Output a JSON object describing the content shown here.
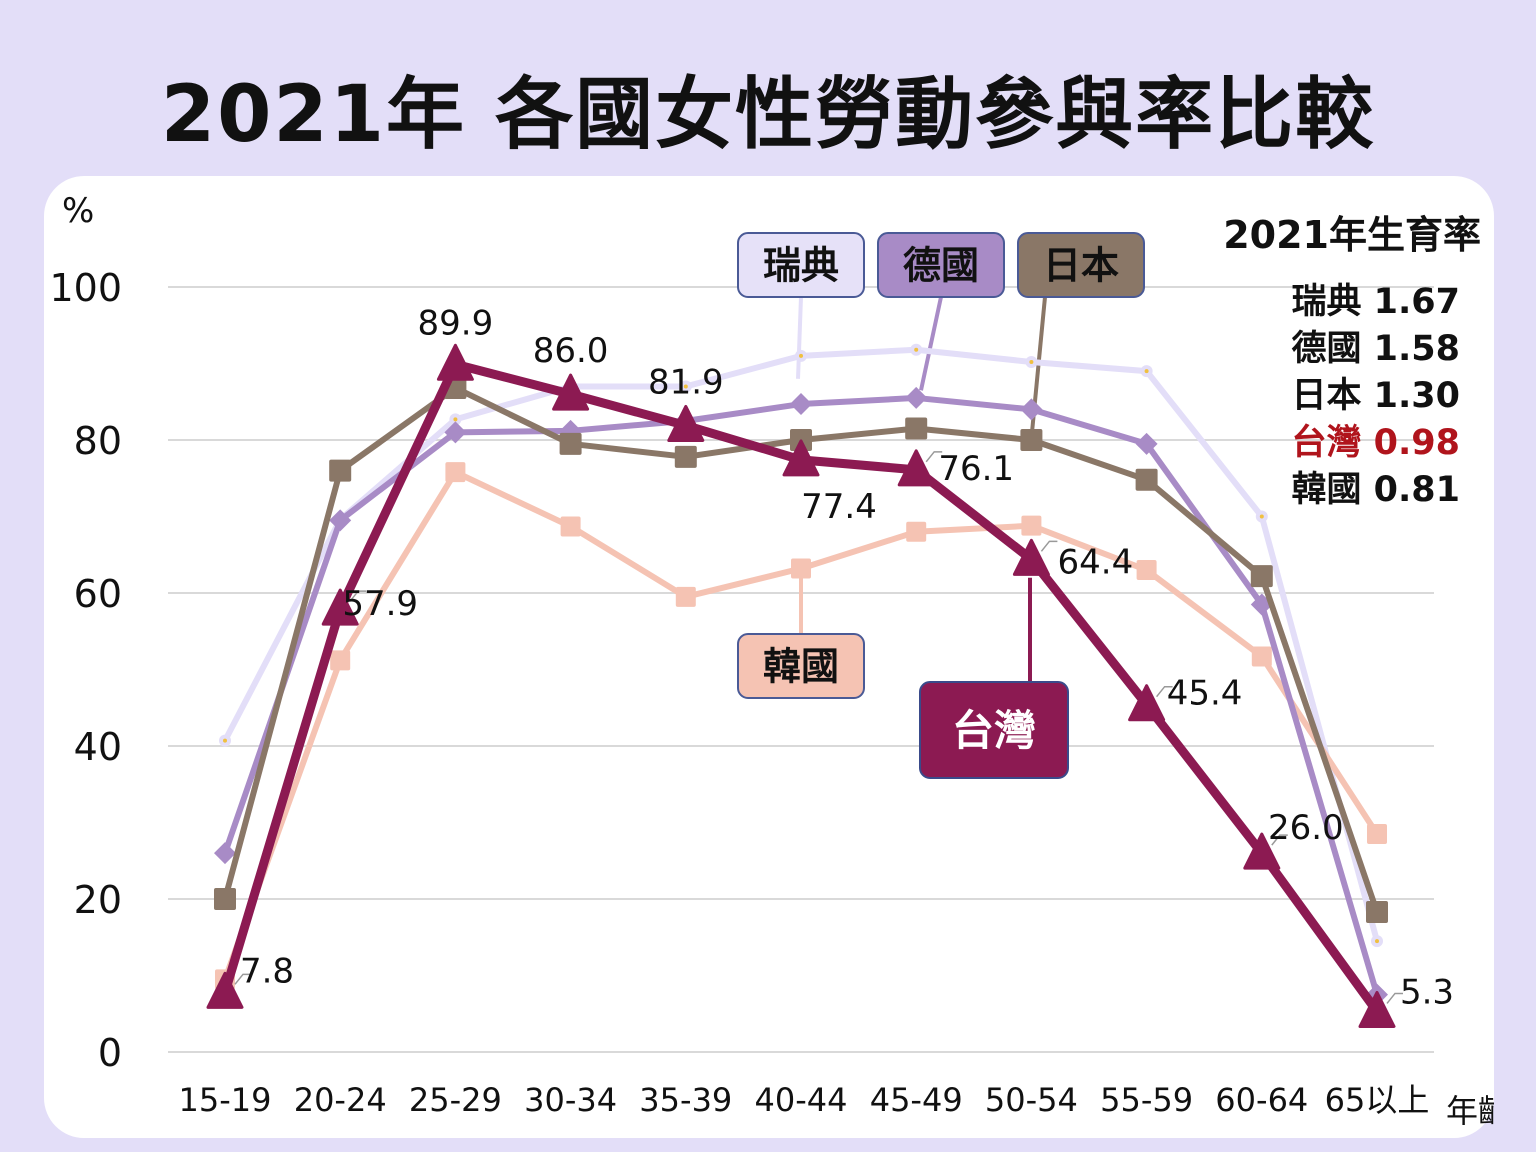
{
  "title": "2021年 各國女性勞動參與率比較",
  "chart_data": {
    "type": "line",
    "title": "2021年 各國女性勞動參與率比較",
    "ylabel": "%",
    "xlabel": "年齡",
    "ylim": [
      0,
      100
    ],
    "yticks": [
      0,
      20,
      40,
      60,
      80,
      100
    ],
    "categories": [
      "15-19",
      "20-24",
      "25-29",
      "30-34",
      "35-39",
      "40-44",
      "45-49",
      "50-54",
      "55-59",
      "60-64",
      "65以上"
    ],
    "series": [
      {
        "name": "瑞典",
        "color": "#e3def8",
        "marker": "circle",
        "values": [
          40.7,
          69.6,
          82.7,
          87.0,
          87.0,
          91.0,
          91.8,
          90.2,
          89.0,
          70.0,
          14.5
        ]
      },
      {
        "name": "韓國",
        "color": "#f5c3b3",
        "marker": "square",
        "values": [
          9.5,
          51.2,
          75.8,
          68.7,
          59.5,
          63.2,
          68.0,
          68.8,
          63.0,
          51.7,
          28.5
        ]
      },
      {
        "name": "德國",
        "color": "#a88bc6",
        "marker": "diamond",
        "values": [
          26.0,
          69.5,
          81.0,
          81.2,
          82.5,
          84.7,
          85.5,
          84.0,
          79.5,
          58.5,
          7.5
        ]
      },
      {
        "name": "日本",
        "color": "#8a7767",
        "marker": "square",
        "values": [
          20.0,
          76.0,
          86.8,
          79.5,
          77.8,
          80.0,
          81.5,
          80.0,
          74.8,
          62.2,
          18.3
        ]
      },
      {
        "name": "台灣",
        "color": "#8c1a52",
        "marker": "triangle",
        "values": [
          7.8,
          57.9,
          89.9,
          86.0,
          81.9,
          77.4,
          76.1,
          64.4,
          45.4,
          26.0,
          5.3
        ]
      }
    ],
    "data_labels": [
      "7.8",
      "57.9",
      "89.9",
      "86.0",
      "81.9",
      "77.4",
      "76.1",
      "64.4",
      "45.4",
      "26.0",
      "5.3"
    ],
    "series_labels": {
      "sweden": "瑞典",
      "germany": "德國",
      "japan": "日本",
      "korea": "韓國",
      "taiwan": "台灣"
    },
    "fertility": {
      "title": "2021年生育率",
      "rows": [
        {
          "label": "瑞典 1.67",
          "color": "#111111"
        },
        {
          "label": "德國 1.58",
          "color": "#111111"
        },
        {
          "label": "日本 1.30",
          "color": "#111111"
        },
        {
          "label": "台灣 0.98",
          "color": "#b0141c"
        },
        {
          "label": "韓國 0.81",
          "color": "#111111"
        }
      ]
    }
  }
}
